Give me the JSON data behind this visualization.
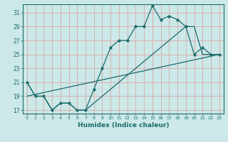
{
  "xlabel": "Humidex (Indice chaleur)",
  "ylabel": "",
  "bg_color": "#cce8e8",
  "grid_color": "#dba8a8",
  "line_color": "#1a6b6b",
  "xlim": [
    -0.5,
    23.5
  ],
  "ylim": [
    16.5,
    32.2
  ],
  "xticks": [
    0,
    1,
    2,
    3,
    4,
    5,
    6,
    7,
    8,
    9,
    10,
    11,
    12,
    13,
    14,
    15,
    16,
    17,
    18,
    19,
    20,
    21,
    22,
    23
  ],
  "yticks": [
    17,
    19,
    21,
    23,
    25,
    27,
    29,
    31
  ],
  "line1_x": [
    0,
    1,
    2,
    3,
    4,
    5,
    6,
    7,
    8,
    9,
    10,
    11,
    12,
    13,
    14,
    15,
    16,
    17,
    18,
    19,
    20,
    21,
    22,
    23
  ],
  "line1_y": [
    21,
    19,
    19,
    17,
    18,
    18,
    17,
    17,
    20,
    23,
    26,
    27,
    27,
    29,
    29,
    32,
    30,
    30.5,
    30,
    29,
    25,
    26,
    25,
    25
  ],
  "line2_x": [
    0,
    1,
    2,
    3,
    4,
    5,
    6,
    7,
    8,
    9,
    10,
    11,
    12,
    13,
    14,
    15,
    16,
    17,
    18,
    19,
    20,
    21,
    22,
    23
  ],
  "line2_y": [
    21,
    19,
    19,
    17,
    18,
    18,
    17,
    17,
    18,
    19,
    20,
    21,
    22,
    23,
    24,
    25,
    26,
    27,
    28,
    29,
    29,
    25,
    25,
    25
  ],
  "line3_x": [
    0,
    23
  ],
  "line3_y": [
    19,
    25
  ]
}
